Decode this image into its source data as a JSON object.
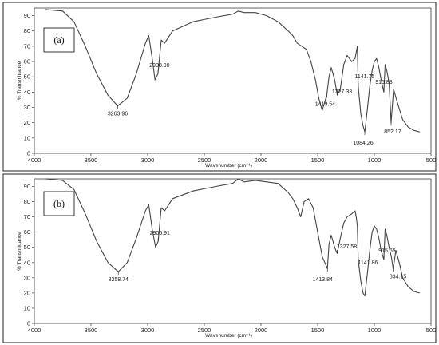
{
  "chart_data": [
    {
      "type": "line",
      "panel_label": "(a)",
      "xlabel": "Wavenumber (cm⁻¹)",
      "ylabel": "% Transmittance",
      "xlim": [
        4000,
        500
      ],
      "ylim": [
        0,
        95
      ],
      "x_ticks": [
        4000,
        3500,
        3000,
        2500,
        2000,
        1500,
        1000,
        500
      ],
      "y_ticks": [
        0,
        10,
        20,
        30,
        40,
        50,
        60,
        70,
        80,
        90
      ],
      "x_tick_labels": [
        "4000",
        "3500",
        "3000",
        "2500",
        "2000",
        "1500",
        "1000",
        "500"
      ],
      "y_tick_labels": [
        "0",
        "10",
        "20",
        "30",
        "40",
        "50",
        "60",
        "70",
        "80",
        "90"
      ],
      "series": [
        {
          "x": [
            3900,
            3750,
            3650,
            3550,
            3450,
            3350,
            3264,
            3180,
            3100,
            3020,
            2990,
            2960,
            2935,
            2909,
            2880,
            2850,
            2780,
            2600,
            2400,
            2250,
            2200,
            2150,
            2050,
            1950,
            1850,
            1760,
            1720,
            1680,
            1640,
            1600,
            1560,
            1520,
            1490,
            1460,
            1420,
            1400,
            1380,
            1350,
            1327,
            1300,
            1270,
            1240,
            1200,
            1170,
            1160,
            1150,
            1142,
            1120,
            1100,
            1084,
            1060,
            1040,
            1020,
            1000,
            980,
            960,
            940,
            916,
            905,
            890,
            870,
            852,
            830,
            800,
            750,
            700,
            650,
            600
          ],
          "y": [
            94,
            93,
            86,
            70,
            52,
            38,
            31,
            36,
            52,
            72,
            77,
            62,
            48,
            52,
            74,
            72,
            80,
            86,
            89,
            91,
            93,
            92,
            92,
            90,
            86,
            80,
            77,
            72,
            70,
            68,
            60,
            48,
            36,
            28,
            38,
            50,
            56,
            48,
            38,
            42,
            58,
            64,
            60,
            62,
            66,
            70,
            44,
            26,
            18,
            14,
            30,
            44,
            54,
            60,
            62,
            56,
            48,
            40,
            58,
            54,
            46,
            20,
            42,
            34,
            22,
            17,
            15,
            14
          ]
        }
      ],
      "annotations": [
        {
          "x": 3263.96,
          "text": "3263.96"
        },
        {
          "x": 2908.9,
          "text": "2908.90"
        },
        {
          "x": 1419.54,
          "text": "1419.54"
        },
        {
          "x": 1327.33,
          "text": "1327.33"
        },
        {
          "x": 1141.75,
          "text": "1141.75"
        },
        {
          "x": 1084.26,
          "text": "1084.26"
        },
        {
          "x": 915.83,
          "text": "915.83"
        },
        {
          "x": 852.17,
          "text": "852.17"
        }
      ]
    },
    {
      "type": "line",
      "panel_label": "(b)",
      "xlabel": "Wavenumber (cm⁻¹)",
      "ylabel": "% Transmittance",
      "xlim": [
        4000,
        500
      ],
      "ylim": [
        0,
        95
      ],
      "x_ticks": [
        4000,
        3500,
        3000,
        2500,
        2000,
        1500,
        1000,
        500
      ],
      "y_ticks": [
        0,
        10,
        20,
        30,
        40,
        50,
        60,
        70,
        80,
        90
      ],
      "x_tick_labels": [
        "4000",
        "3500",
        "3000",
        "2500",
        "2000",
        "1500",
        "1000",
        "500"
      ],
      "y_tick_labels": [
        "0",
        "10",
        "20",
        "30",
        "40",
        "50",
        "60",
        "70",
        "80",
        "90"
      ],
      "series": [
        {
          "x": [
            3900,
            3750,
            3650,
            3550,
            3450,
            3350,
            3259,
            3180,
            3100,
            3020,
            2990,
            2960,
            2930,
            2907,
            2880,
            2850,
            2780,
            2600,
            2400,
            2250,
            2200,
            2150,
            2050,
            1950,
            1850,
            1760,
            1720,
            1680,
            1650,
            1620,
            1580,
            1540,
            1500,
            1460,
            1414,
            1400,
            1380,
            1350,
            1328,
            1300,
            1270,
            1240,
            1200,
            1170,
            1160,
            1150,
            1142,
            1120,
            1100,
            1084,
            1060,
            1040,
            1020,
            1000,
            980,
            960,
            940,
            916,
            905,
            890,
            870,
            850,
            834,
            810,
            780,
            750,
            700,
            650,
            600
          ],
          "y": [
            95,
            94,
            88,
            72,
            54,
            40,
            34,
            40,
            56,
            74,
            78,
            62,
            50,
            54,
            76,
            74,
            82,
            87,
            90,
            92,
            95,
            93,
            94,
            93,
            92,
            86,
            82,
            76,
            70,
            80,
            82,
            76,
            60,
            44,
            36,
            52,
            58,
            50,
            46,
            56,
            66,
            70,
            72,
            74,
            70,
            64,
            42,
            28,
            20,
            18,
            34,
            48,
            60,
            64,
            62,
            56,
            48,
            42,
            62,
            58,
            50,
            44,
            36,
            48,
            40,
            30,
            24,
            21,
            20
          ]
        }
      ],
      "annotations": [
        {
          "x": 3258.74,
          "text": "3258.74"
        },
        {
          "x": 2906.91,
          "text": "2906.91"
        },
        {
          "x": 1413.84,
          "text": "1413.84"
        },
        {
          "x": 1327.58,
          "text": "1327.58"
        },
        {
          "x": 1141.86,
          "text": "1141.86"
        },
        {
          "x": 915.65,
          "text": "915.65"
        },
        {
          "x": 834.15,
          "text": "834.15"
        }
      ]
    }
  ]
}
